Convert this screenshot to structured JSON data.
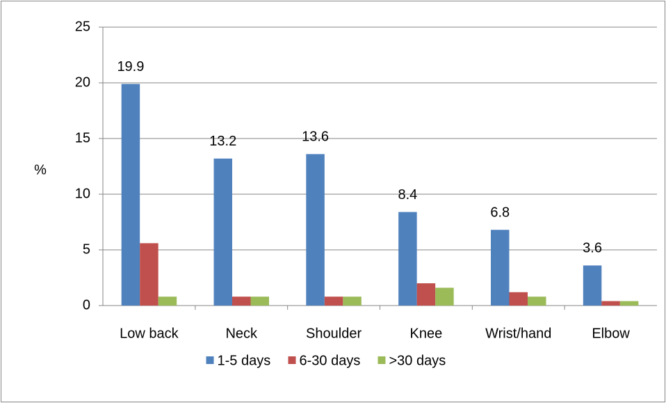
{
  "chart_data": {
    "type": "bar",
    "ylabel": "%",
    "categories": [
      "Low back",
      "Neck",
      "Shoulder",
      "Knee",
      "Wrist/hand",
      "Elbow"
    ],
    "series": [
      {
        "name": "1-5 days",
        "color": "#4f81bd",
        "values": [
          19.9,
          13.2,
          13.6,
          8.4,
          6.8,
          3.6
        ],
        "data_labels": true
      },
      {
        "name": "6-30 days",
        "color": "#c0504d",
        "values": [
          5.6,
          0.8,
          0.8,
          2.0,
          1.2,
          0.4
        ],
        "data_labels": false
      },
      {
        "name": ">30 days",
        "color": "#9bbb59",
        "values": [
          0.8,
          0.8,
          0.8,
          1.6,
          0.8,
          0.4
        ],
        "data_labels": false
      }
    ],
    "ylim": [
      0,
      25
    ],
    "yticks": [
      0,
      5,
      10,
      15,
      20,
      25
    ],
    "grid": true,
    "legend": "bottom"
  }
}
